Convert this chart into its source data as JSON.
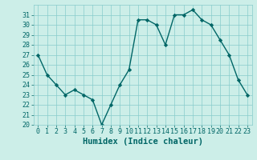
{
  "x": [
    0,
    1,
    2,
    3,
    4,
    5,
    6,
    7,
    8,
    9,
    10,
    11,
    12,
    13,
    14,
    15,
    16,
    17,
    18,
    19,
    20,
    21,
    22,
    23
  ],
  "y": [
    27,
    25,
    24,
    23,
    23.5,
    23,
    22.5,
    20,
    22,
    24,
    25.5,
    30.5,
    30.5,
    30,
    28,
    31,
    31,
    31.5,
    30.5,
    30,
    28.5,
    27,
    24.5,
    23
  ],
  "line_color": "#006666",
  "marker": "D",
  "marker_size": 2.2,
  "background_color": "#cceee8",
  "grid_color": "#88cccc",
  "xlabel": "Humidex (Indice chaleur)",
  "xlim": [
    -0.5,
    23.5
  ],
  "ylim": [
    20,
    32
  ],
  "yticks": [
    20,
    21,
    22,
    23,
    24,
    25,
    26,
    27,
    28,
    29,
    30,
    31
  ],
  "tick_color": "#006666",
  "label_color": "#006666",
  "xlabel_fontsize": 7.5,
  "tick_fontsize": 6.0,
  "line_width": 1.0
}
